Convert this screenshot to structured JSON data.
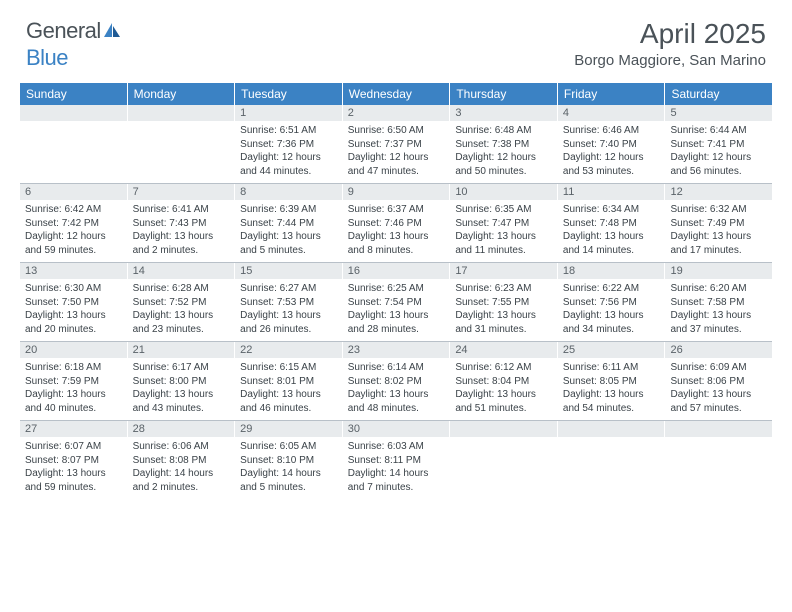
{
  "brand": {
    "general": "General",
    "blue": "Blue"
  },
  "title": "April 2025",
  "location": "Borgo Maggiore, San Marino",
  "colors": {
    "header_bg": "#3b82c4",
    "header_text": "#ffffff",
    "daynum_bg": "#e8ebed",
    "daynum_text": "#5a6268",
    "body_text": "#3a4248",
    "border": "#b8c0c8",
    "logo_gray": "#4a5258",
    "logo_blue": "#3b82c4"
  },
  "weekdays": [
    "Sunday",
    "Monday",
    "Tuesday",
    "Wednesday",
    "Thursday",
    "Friday",
    "Saturday"
  ],
  "weeks": [
    [
      {
        "n": "",
        "lines": []
      },
      {
        "n": "",
        "lines": []
      },
      {
        "n": "1",
        "lines": [
          "Sunrise: 6:51 AM",
          "Sunset: 7:36 PM",
          "Daylight: 12 hours",
          "and 44 minutes."
        ]
      },
      {
        "n": "2",
        "lines": [
          "Sunrise: 6:50 AM",
          "Sunset: 7:37 PM",
          "Daylight: 12 hours",
          "and 47 minutes."
        ]
      },
      {
        "n": "3",
        "lines": [
          "Sunrise: 6:48 AM",
          "Sunset: 7:38 PM",
          "Daylight: 12 hours",
          "and 50 minutes."
        ]
      },
      {
        "n": "4",
        "lines": [
          "Sunrise: 6:46 AM",
          "Sunset: 7:40 PM",
          "Daylight: 12 hours",
          "and 53 minutes."
        ]
      },
      {
        "n": "5",
        "lines": [
          "Sunrise: 6:44 AM",
          "Sunset: 7:41 PM",
          "Daylight: 12 hours",
          "and 56 minutes."
        ]
      }
    ],
    [
      {
        "n": "6",
        "lines": [
          "Sunrise: 6:42 AM",
          "Sunset: 7:42 PM",
          "Daylight: 12 hours",
          "and 59 minutes."
        ]
      },
      {
        "n": "7",
        "lines": [
          "Sunrise: 6:41 AM",
          "Sunset: 7:43 PM",
          "Daylight: 13 hours",
          "and 2 minutes."
        ]
      },
      {
        "n": "8",
        "lines": [
          "Sunrise: 6:39 AM",
          "Sunset: 7:44 PM",
          "Daylight: 13 hours",
          "and 5 minutes."
        ]
      },
      {
        "n": "9",
        "lines": [
          "Sunrise: 6:37 AM",
          "Sunset: 7:46 PM",
          "Daylight: 13 hours",
          "and 8 minutes."
        ]
      },
      {
        "n": "10",
        "lines": [
          "Sunrise: 6:35 AM",
          "Sunset: 7:47 PM",
          "Daylight: 13 hours",
          "and 11 minutes."
        ]
      },
      {
        "n": "11",
        "lines": [
          "Sunrise: 6:34 AM",
          "Sunset: 7:48 PM",
          "Daylight: 13 hours",
          "and 14 minutes."
        ]
      },
      {
        "n": "12",
        "lines": [
          "Sunrise: 6:32 AM",
          "Sunset: 7:49 PM",
          "Daylight: 13 hours",
          "and 17 minutes."
        ]
      }
    ],
    [
      {
        "n": "13",
        "lines": [
          "Sunrise: 6:30 AM",
          "Sunset: 7:50 PM",
          "Daylight: 13 hours",
          "and 20 minutes."
        ]
      },
      {
        "n": "14",
        "lines": [
          "Sunrise: 6:28 AM",
          "Sunset: 7:52 PM",
          "Daylight: 13 hours",
          "and 23 minutes."
        ]
      },
      {
        "n": "15",
        "lines": [
          "Sunrise: 6:27 AM",
          "Sunset: 7:53 PM",
          "Daylight: 13 hours",
          "and 26 minutes."
        ]
      },
      {
        "n": "16",
        "lines": [
          "Sunrise: 6:25 AM",
          "Sunset: 7:54 PM",
          "Daylight: 13 hours",
          "and 28 minutes."
        ]
      },
      {
        "n": "17",
        "lines": [
          "Sunrise: 6:23 AM",
          "Sunset: 7:55 PM",
          "Daylight: 13 hours",
          "and 31 minutes."
        ]
      },
      {
        "n": "18",
        "lines": [
          "Sunrise: 6:22 AM",
          "Sunset: 7:56 PM",
          "Daylight: 13 hours",
          "and 34 minutes."
        ]
      },
      {
        "n": "19",
        "lines": [
          "Sunrise: 6:20 AM",
          "Sunset: 7:58 PM",
          "Daylight: 13 hours",
          "and 37 minutes."
        ]
      }
    ],
    [
      {
        "n": "20",
        "lines": [
          "Sunrise: 6:18 AM",
          "Sunset: 7:59 PM",
          "Daylight: 13 hours",
          "and 40 minutes."
        ]
      },
      {
        "n": "21",
        "lines": [
          "Sunrise: 6:17 AM",
          "Sunset: 8:00 PM",
          "Daylight: 13 hours",
          "and 43 minutes."
        ]
      },
      {
        "n": "22",
        "lines": [
          "Sunrise: 6:15 AM",
          "Sunset: 8:01 PM",
          "Daylight: 13 hours",
          "and 46 minutes."
        ]
      },
      {
        "n": "23",
        "lines": [
          "Sunrise: 6:14 AM",
          "Sunset: 8:02 PM",
          "Daylight: 13 hours",
          "and 48 minutes."
        ]
      },
      {
        "n": "24",
        "lines": [
          "Sunrise: 6:12 AM",
          "Sunset: 8:04 PM",
          "Daylight: 13 hours",
          "and 51 minutes."
        ]
      },
      {
        "n": "25",
        "lines": [
          "Sunrise: 6:11 AM",
          "Sunset: 8:05 PM",
          "Daylight: 13 hours",
          "and 54 minutes."
        ]
      },
      {
        "n": "26",
        "lines": [
          "Sunrise: 6:09 AM",
          "Sunset: 8:06 PM",
          "Daylight: 13 hours",
          "and 57 minutes."
        ]
      }
    ],
    [
      {
        "n": "27",
        "lines": [
          "Sunrise: 6:07 AM",
          "Sunset: 8:07 PM",
          "Daylight: 13 hours",
          "and 59 minutes."
        ]
      },
      {
        "n": "28",
        "lines": [
          "Sunrise: 6:06 AM",
          "Sunset: 8:08 PM",
          "Daylight: 14 hours",
          "and 2 minutes."
        ]
      },
      {
        "n": "29",
        "lines": [
          "Sunrise: 6:05 AM",
          "Sunset: 8:10 PM",
          "Daylight: 14 hours",
          "and 5 minutes."
        ]
      },
      {
        "n": "30",
        "lines": [
          "Sunrise: 6:03 AM",
          "Sunset: 8:11 PM",
          "Daylight: 14 hours",
          "and 7 minutes."
        ]
      },
      {
        "n": "",
        "lines": []
      },
      {
        "n": "",
        "lines": []
      },
      {
        "n": "",
        "lines": []
      }
    ]
  ]
}
